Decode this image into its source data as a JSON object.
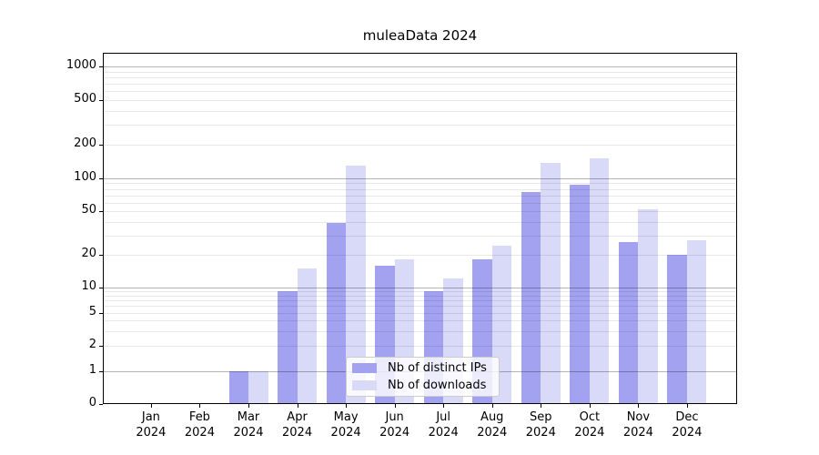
{
  "title": "muleaData 2024",
  "chart_data": {
    "type": "bar",
    "title": "muleaData 2024",
    "categories": [
      "Jan",
      "Feb",
      "Mar",
      "Apr",
      "May",
      "Jun",
      "Jul",
      "Aug",
      "Sep",
      "Oct",
      "Nov",
      "Dec"
    ],
    "category_year": "2024",
    "series": [
      {
        "name": "Nb of distinct IPs",
        "color": "#a2a2f0",
        "values": [
          0,
          0,
          1,
          9,
          39,
          16,
          9,
          18,
          75,
          87,
          26,
          20
        ]
      },
      {
        "name": "Nb of downloads",
        "color": "#d9d9f8",
        "values": [
          0,
          0,
          1,
          15,
          130,
          18,
          12,
          24,
          137,
          150,
          52,
          27
        ]
      }
    ],
    "xlabel": "",
    "ylabel": "",
    "yscale": "log above 1, linear 0-1",
    "y_tick_labels": [
      0,
      1,
      2,
      5,
      10,
      20,
      50,
      100,
      200,
      500,
      1000
    ],
    "y_minor_gridlines": [
      2,
      3,
      4,
      5,
      6,
      7,
      8,
      9,
      20,
      30,
      40,
      50,
      60,
      70,
      80,
      90,
      200,
      300,
      400,
      500,
      600,
      700,
      800,
      900
    ],
    "y_major_gridlines": [
      1,
      10,
      100,
      1000
    ],
    "ylim": [
      0,
      1300
    ],
    "grid": "horizontal major+minor",
    "legend_position": "lower center"
  },
  "colors": {
    "bar_distinct_ips": "#a2a2f0",
    "bar_downloads": "#d9d9f8",
    "grid_major": "#b3b3b3",
    "grid_minor": "#e8e8e8",
    "axis": "#000000",
    "background": "#ffffff"
  }
}
